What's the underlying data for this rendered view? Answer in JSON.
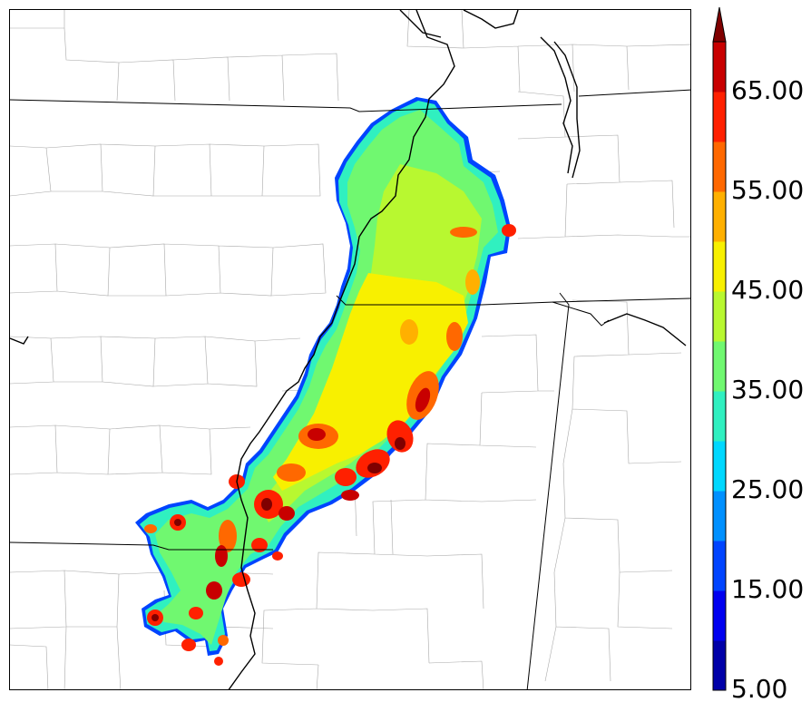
{
  "colorbar": {
    "labels": [
      "5.00",
      "15.00",
      "25.00",
      "35.00",
      "45.00",
      "55.00",
      "65.00"
    ],
    "colors": [
      "#0000a8",
      "#0000f0",
      "#0044ff",
      "#0090ff",
      "#00d8ff",
      "#30f0c0",
      "#70f870",
      "#b8f830",
      "#f8f000",
      "#ffb000",
      "#ff6800",
      "#ff2000",
      "#c80000",
      "#800000"
    ],
    "extend": "max"
  }
}
